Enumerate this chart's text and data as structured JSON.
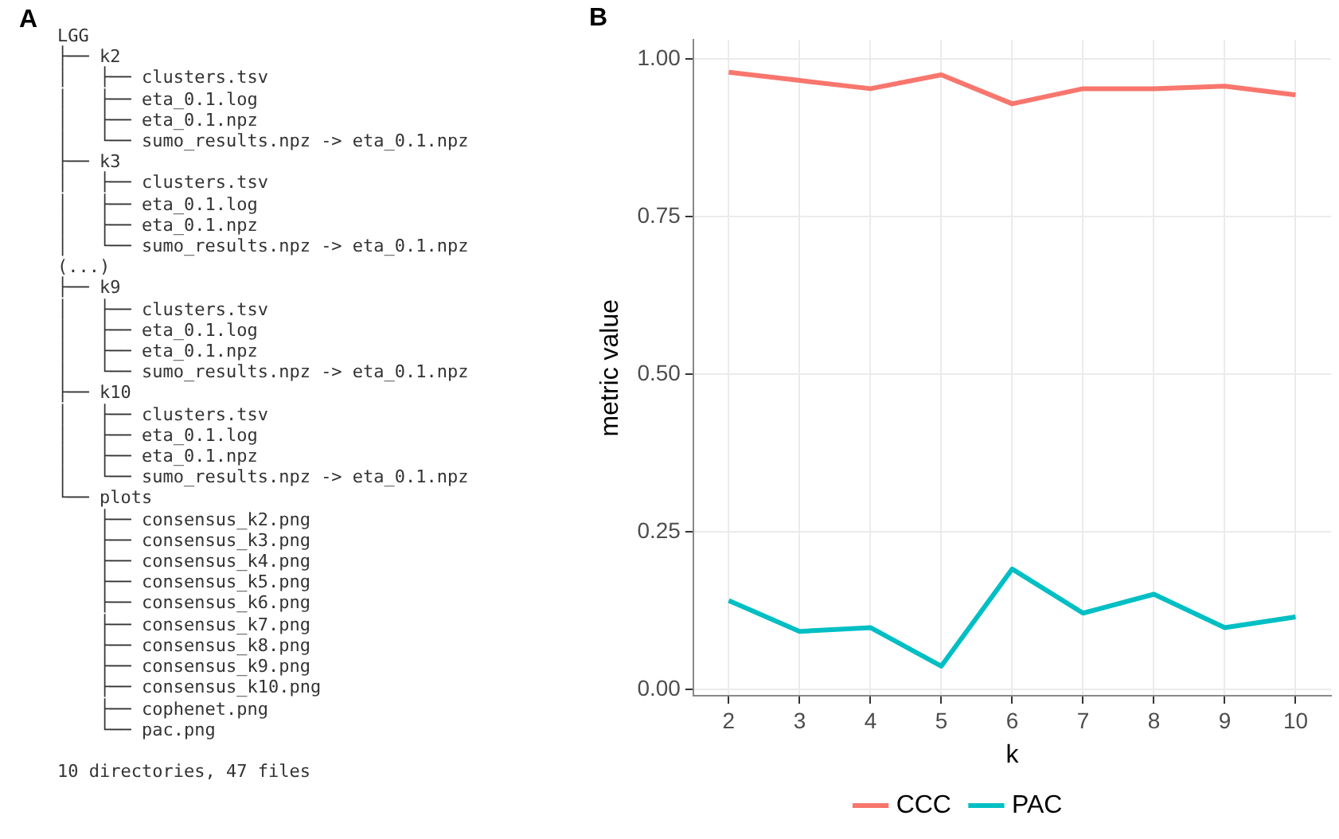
{
  "chart_data": [
    {
      "type": "other",
      "title": "A",
      "annotations": [
        "LGG",
        "├── k2",
        "│   ├── clusters.tsv",
        "│   ├── eta_0.1.log",
        "│   ├── eta_0.1.npz",
        "│   └── sumo_results.npz -> eta_0.1.npz",
        "├── k3",
        "│   ├── clusters.tsv",
        "│   ├── eta_0.1.log",
        "│   ├── eta_0.1.npz",
        "│   └── sumo_results.npz -> eta_0.1.npz",
        "(...)",
        "├── k9",
        "│   ├── clusters.tsv",
        "│   ├── eta_0.1.log",
        "│   ├── eta_0.1.npz",
        "│   └── sumo_results.npz -> eta_0.1.npz",
        "├── k10",
        "│   ├── clusters.tsv",
        "│   ├── eta_0.1.log",
        "│   ├── eta_0.1.npz",
        "│   └── sumo_results.npz -> eta_0.1.npz",
        "└── plots",
        "    ├── consensus_k2.png",
        "    ├── consensus_k3.png",
        "    ├── consensus_k4.png",
        "    ├── consensus_k5.png",
        "    ├── consensus_k6.png",
        "    ├── consensus_k7.png",
        "    ├── consensus_k8.png",
        "    ├── consensus_k9.png",
        "    ├── consensus_k10.png",
        "    ├── cophenet.png",
        "    └── pac.png",
        "10 directories, 47 files"
      ]
    },
    {
      "type": "line",
      "title": "B",
      "xlabel": "k",
      "ylabel": "metric value",
      "categories": [
        "2",
        "3",
        "4",
        "5",
        "6",
        "7",
        "8",
        "9",
        "10"
      ],
      "series": [
        {
          "name": "CCC",
          "color": "#f8766d",
          "values": [
            0.979,
            0.966,
            0.953,
            0.975,
            0.929,
            0.953,
            0.953,
            0.957,
            0.943
          ]
        },
        {
          "name": "PAC",
          "color": "#00bfc4",
          "values": [
            0.141,
            0.092,
            0.098,
            0.037,
            0.191,
            0.121,
            0.151,
            0.098,
            0.115
          ]
        }
      ],
      "ylim": [
        -0.01,
        1.03
      ],
      "yticks": [
        {
          "value": 0,
          "label": "0.00"
        },
        {
          "value": 0.25,
          "label": "0.25"
        },
        {
          "value": 0.5,
          "label": "0.50"
        },
        {
          "value": 0.75,
          "label": "0.75"
        },
        {
          "value": 1,
          "label": "1.00"
        }
      ],
      "grid": true,
      "legend": "bottom",
      "marker": "none",
      "line_style": "solid"
    }
  ]
}
